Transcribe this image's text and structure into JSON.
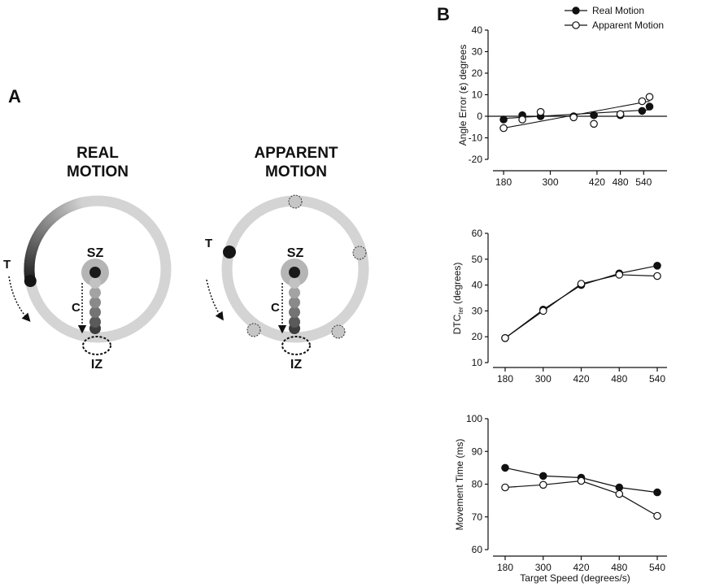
{
  "panel_a": {
    "label": "A",
    "real": {
      "title_line1": "REAL",
      "title_line2": "MOTION"
    },
    "apparent": {
      "title_line1": "APPARENT",
      "title_line2": "MOTION"
    },
    "labels": {
      "target": "T",
      "start_zone": "SZ",
      "cursor": "C",
      "interception_zone": "IZ"
    }
  },
  "panel_b": {
    "label": "B",
    "legend": {
      "real": "Real Motion",
      "apparent": "Apparent Motion"
    }
  },
  "chart_data": [
    {
      "type": "scatter",
      "ylabel_pre": "Angle Error (",
      "ylabel_symbol": "ε",
      "ylabel_post": ") degrees",
      "ylim": [
        -20,
        40
      ],
      "yticks": [
        "-20",
        "-10",
        "0",
        "10",
        "20",
        "30",
        "40"
      ],
      "xticks": [
        "180",
        "300",
        "420",
        "480",
        "540"
      ],
      "xtick_values": [
        180,
        300,
        420,
        480,
        540
      ],
      "x_range": [
        140,
        600
      ],
      "zero_line": true,
      "series": [
        {
          "name": "Real Motion",
          "marker": "filled",
          "x": [
            180,
            228,
            275,
            360,
            412,
            480,
            536,
            555
          ],
          "y": [
            -1.5,
            0.5,
            0,
            0,
            0.5,
            0.5,
            2.5,
            4.5
          ],
          "fit": [
            -1.0,
            3.0
          ]
        },
        {
          "name": "Apparent Motion",
          "marker": "open",
          "x": [
            180,
            228,
            275,
            360,
            412,
            480,
            536,
            555
          ],
          "y": [
            -5.5,
            -1.5,
            2,
            -0.5,
            -3.5,
            1,
            7,
            9
          ],
          "fit": [
            -5.5,
            7.0
          ]
        }
      ]
    },
    {
      "type": "line",
      "ylabel_pre": "DTC",
      "ylabel_sub": "ter",
      "ylabel_post": " (degrees)",
      "ylim": [
        10,
        60
      ],
      "yticks": [
        "10",
        "20",
        "30",
        "40",
        "50",
        "60"
      ],
      "categories": [
        "180",
        "300",
        "420",
        "480",
        "540"
      ],
      "series": [
        {
          "name": "Real Motion",
          "marker": "filled",
          "values": [
            19.5,
            30.5,
            40,
            44.5,
            47.5
          ]
        },
        {
          "name": "Apparent Motion",
          "marker": "open",
          "values": [
            19.5,
            30,
            40.5,
            44,
            43.5
          ]
        }
      ]
    },
    {
      "type": "line",
      "ylabel_pre": "Movement Time (ms)",
      "xlabel": "Target Speed (degrees/s)",
      "ylim": [
        60,
        100
      ],
      "yticks": [
        "60",
        "70",
        "80",
        "90",
        "100"
      ],
      "categories": [
        "180",
        "300",
        "420",
        "480",
        "540"
      ],
      "series": [
        {
          "name": "Real Motion",
          "marker": "filled",
          "values": [
            85,
            82.5,
            82,
            79,
            77.5
          ]
        },
        {
          "name": "Apparent Motion",
          "marker": "open",
          "values": [
            79,
            79.8,
            81,
            77,
            70.3
          ]
        }
      ]
    }
  ]
}
